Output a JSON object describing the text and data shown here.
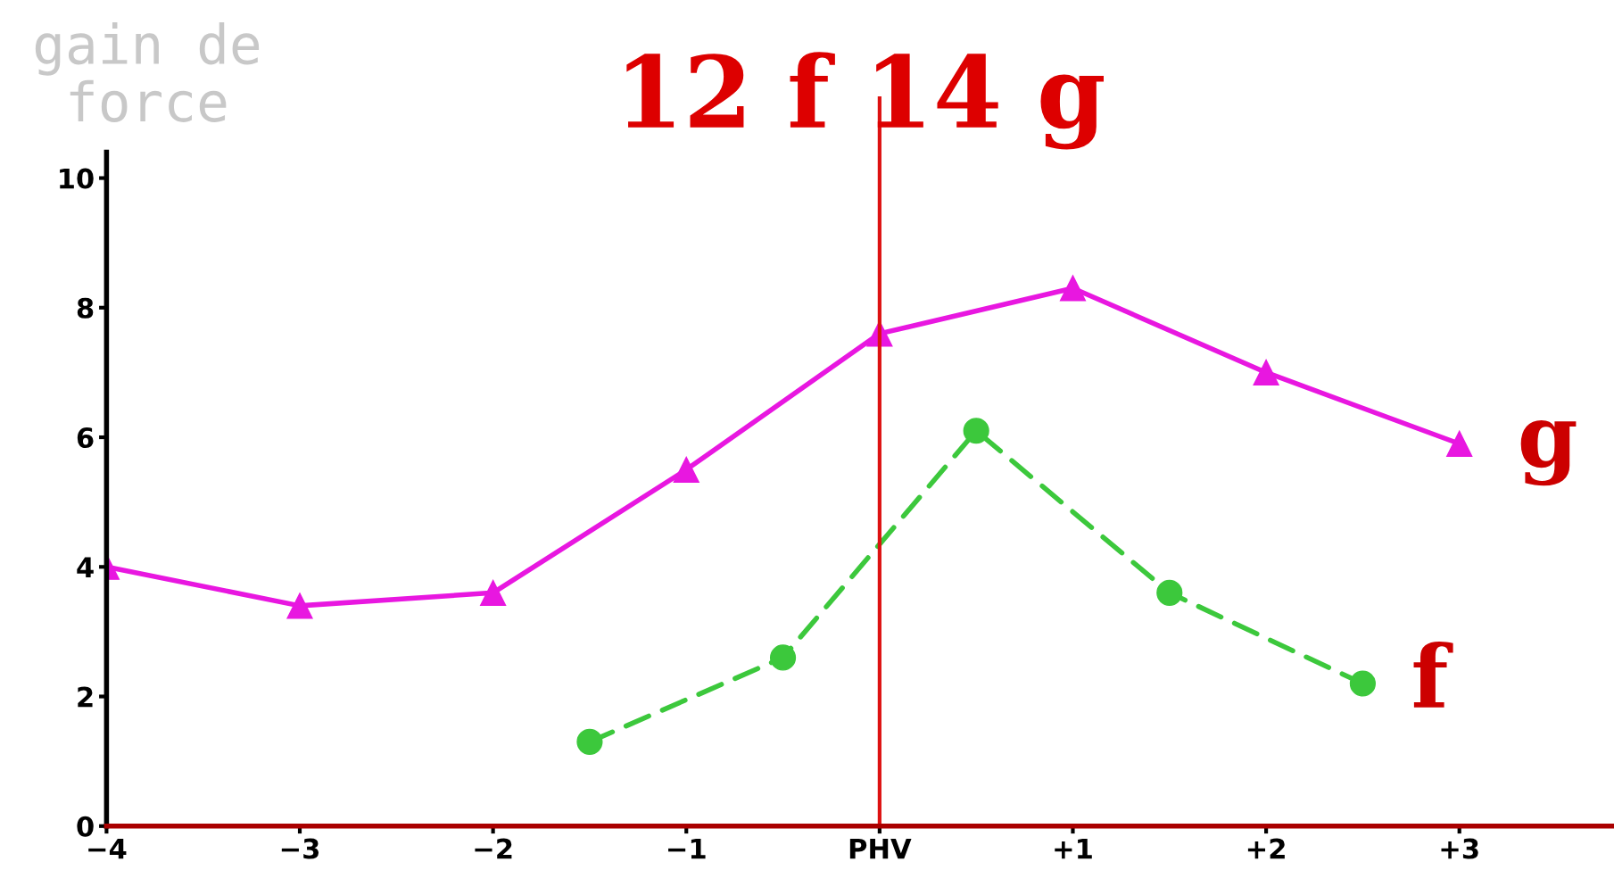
{
  "chart_data": {
    "type": "line",
    "title": "12 f 14 g",
    "annotations": [
      "gain de\n force"
    ],
    "xlim": [
      -4,
      3.8
    ],
    "ylim": [
      0,
      10.4
    ],
    "xticks": [
      {
        "value": -4,
        "label": "−4"
      },
      {
        "value": -3,
        "label": "−3"
      },
      {
        "value": -2,
        "label": "−2"
      },
      {
        "value": -1,
        "label": "−1"
      },
      {
        "value": 0,
        "label": "PHV"
      },
      {
        "value": 1,
        "label": "+1"
      },
      {
        "value": 2,
        "label": "+2"
      },
      {
        "value": 3,
        "label": "+3"
      }
    ],
    "yticks": [
      0,
      2,
      4,
      6,
      8,
      10
    ],
    "grid": false,
    "legend": false,
    "series": [
      {
        "name": "g",
        "color": "#e817e0",
        "marker": "triangle",
        "line_style": "solid",
        "x": [
          -4,
          -3,
          -2,
          -1,
          0,
          1,
          2,
          3
        ],
        "values": [
          4.0,
          3.4,
          3.6,
          5.5,
          7.6,
          8.3,
          7.0,
          5.9
        ]
      },
      {
        "name": "f",
        "color": "#3cc83c",
        "marker": "circle",
        "line_style": "dashed",
        "x": [
          -1.5,
          -0.5,
          0.5,
          1.5,
          2.5
        ],
        "values": [
          1.3,
          2.6,
          6.1,
          3.6,
          2.2
        ]
      }
    ],
    "ref_lines": [
      {
        "axis": "x",
        "value": 0,
        "color": "#dd1111",
        "line_style": "solid"
      }
    ]
  }
}
